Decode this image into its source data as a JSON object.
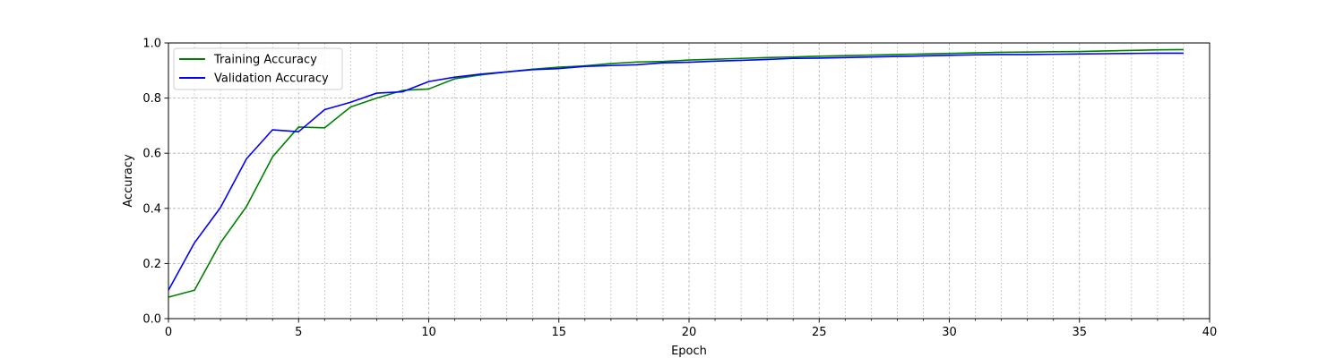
{
  "chart_data": {
    "type": "line",
    "title": "",
    "xlabel": "Epoch",
    "ylabel": "Accuracy",
    "xlim": [
      0,
      40
    ],
    "ylim": [
      0,
      1.0
    ],
    "x_major_ticks": [
      0,
      5,
      10,
      15,
      20,
      25,
      30,
      35,
      40
    ],
    "x_tick_labels": [
      "0",
      "5",
      "10",
      "15",
      "20",
      "25",
      "30",
      "35",
      "40"
    ],
    "x_minor_step": 1,
    "y_major_ticks": [
      0.0,
      0.2,
      0.4,
      0.6,
      0.8,
      1.0
    ],
    "y_tick_labels": [
      "0.0",
      "0.2",
      "0.4",
      "0.6",
      "0.8",
      "1.0"
    ],
    "grid": "on (major and minor, dashed)",
    "legend_position": "upper-left",
    "x": [
      0,
      1,
      2,
      3,
      4,
      5,
      6,
      7,
      8,
      9,
      10,
      11,
      12,
      13,
      14,
      15,
      16,
      17,
      18,
      19,
      20,
      21,
      22,
      23,
      24,
      25,
      26,
      27,
      28,
      29,
      30,
      31,
      32,
      33,
      34,
      35,
      36,
      37,
      38,
      39
    ],
    "series": [
      {
        "name": "Training Accuracy",
        "color": "#008000",
        "values": [
          0.078,
          0.103,
          0.275,
          0.407,
          0.587,
          0.695,
          0.692,
          0.768,
          0.8,
          0.828,
          0.833,
          0.87,
          0.884,
          0.895,
          0.905,
          0.912,
          0.917,
          0.925,
          0.931,
          0.933,
          0.938,
          0.941,
          0.944,
          0.947,
          0.949,
          0.952,
          0.954,
          0.956,
          0.958,
          0.96,
          0.962,
          0.964,
          0.966,
          0.967,
          0.968,
          0.969,
          0.971,
          0.973,
          0.975,
          0.976
        ]
      },
      {
        "name": "Validation Accuracy",
        "color": "#0000ff",
        "values": [
          0.103,
          0.275,
          0.403,
          0.58,
          0.685,
          0.678,
          0.758,
          0.785,
          0.818,
          0.823,
          0.86,
          0.876,
          0.887,
          0.895,
          0.903,
          0.907,
          0.915,
          0.918,
          0.921,
          0.928,
          0.93,
          0.934,
          0.937,
          0.94,
          0.944,
          0.945,
          0.947,
          0.949,
          0.951,
          0.953,
          0.955,
          0.957,
          0.958,
          0.958,
          0.959,
          0.96,
          0.961,
          0.962,
          0.963,
          0.963
        ]
      }
    ]
  }
}
